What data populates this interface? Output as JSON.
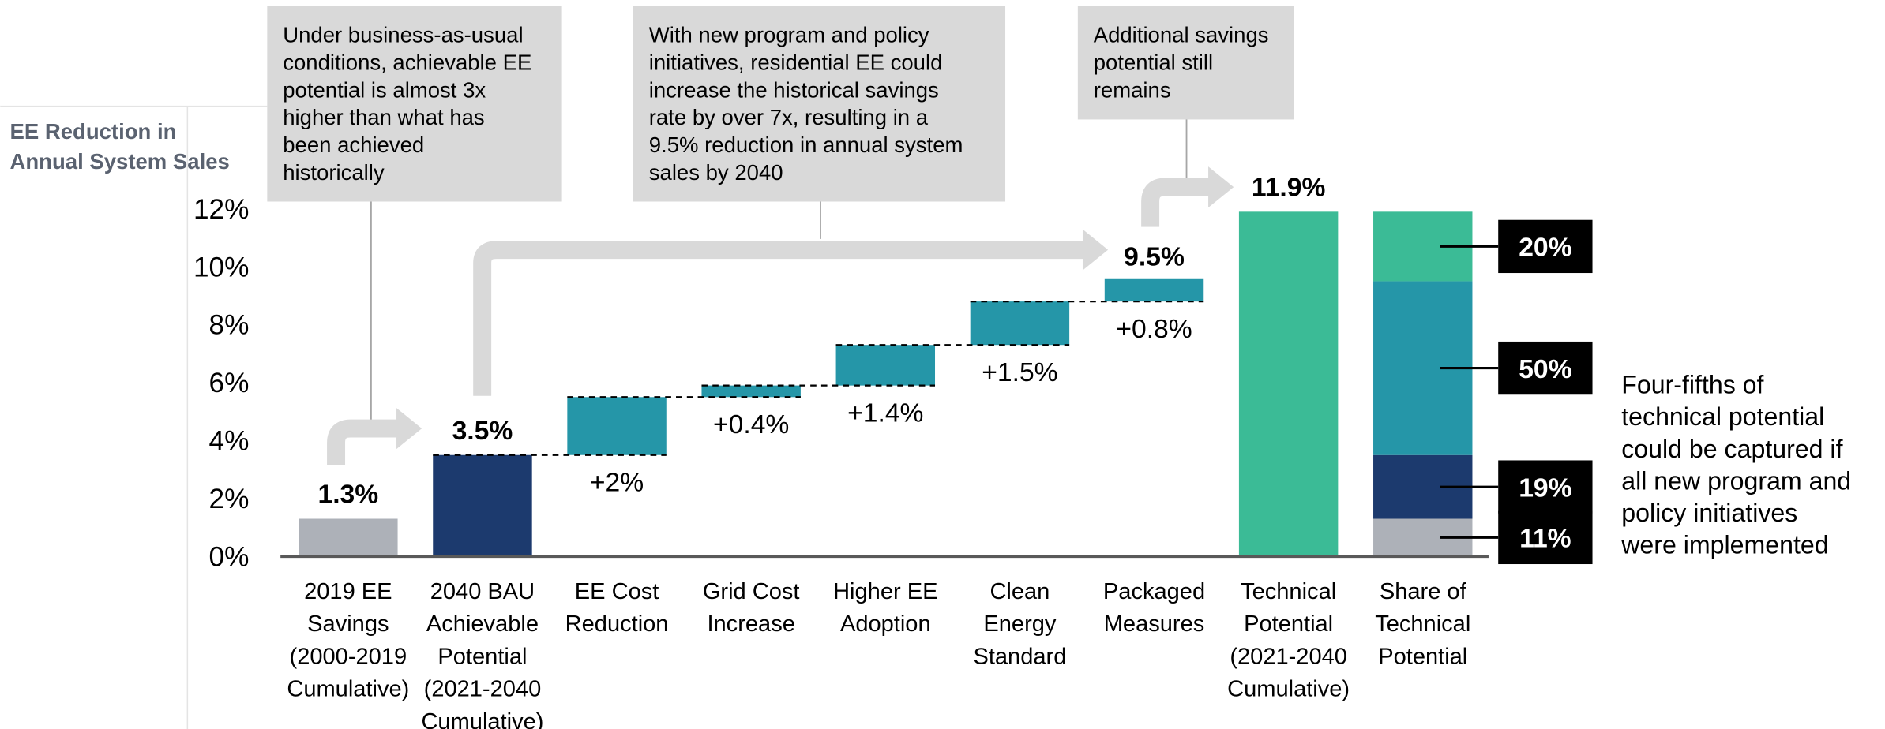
{
  "chart_data": {
    "type": "waterfall",
    "axis_title": [
      "EE Reduction in",
      "Annual System Sales"
    ],
    "categories": [
      [
        "2019 EE",
        "Savings",
        "(2000-2019",
        "Cumulative)"
      ],
      [
        "2040 BAU",
        "Achievable",
        "Potential",
        "(2021-2040",
        "Cumulative)"
      ],
      [
        "EE Cost",
        "Reduction"
      ],
      [
        "Grid Cost",
        "Increase"
      ],
      [
        "Higher EE",
        "Adoption"
      ],
      [
        "Clean",
        "Energy",
        "Standard"
      ],
      [
        "Packaged",
        "Measures"
      ],
      [
        "Technical",
        "Potential",
        "(2021-2040",
        "Cumulative)"
      ],
      [
        "Share of",
        "Technical",
        "Potential"
      ]
    ],
    "values": [
      1.3,
      3.5,
      2,
      0.4,
      1.4,
      1.5,
      0.8,
      11.9,
      null
    ],
    "measure": [
      "absolute",
      "absolute",
      "relative",
      "relative",
      "relative",
      "relative",
      "relative",
      "absolute",
      null
    ],
    "value_labels": [
      "1.3%",
      "3.5%",
      "+2%",
      "+0.4%",
      "+1.4%",
      "+1.5%",
      "+0.8%",
      "11.9%",
      null
    ],
    "colors": [
      "#adb1b8",
      "#1c3a6e",
      "#2596a8",
      "#2596a8",
      "#2596a8",
      "#2596a8",
      "#2596a8",
      "#3bbb96",
      null
    ],
    "total_label": {
      "value": 9.5,
      "label": "9.5%"
    },
    "share": {
      "values": [
        1.3,
        2.2,
        6.0,
        2.4
      ],
      "colors": [
        "#adb1b8",
        "#1c3a6e",
        "#2596a8",
        "#3bbb96"
      ],
      "percents": [
        11,
        19,
        50,
        20
      ],
      "percent_labels": [
        "11%",
        "19%",
        "50%",
        "20%"
      ]
    },
    "ylim": [
      0,
      12
    ],
    "yticks": [
      {
        "value": 0,
        "label": "0%"
      },
      {
        "value": 2,
        "label": "2%"
      },
      {
        "value": 4,
        "label": "4%"
      },
      {
        "value": 6,
        "label": "6%"
      },
      {
        "value": 8,
        "label": "8%"
      },
      {
        "value": 10,
        "label": "10%"
      },
      {
        "value": 12,
        "label": "12%"
      }
    ],
    "annotations": [
      [
        "Under business-as-usual",
        "conditions, achievable EE",
        "potential is almost 3x",
        "higher than what has",
        "been achieved",
        "historically"
      ],
      [
        "With new program and policy",
        "initiatives, residential EE could",
        "increase the historical savings",
        "rate by over 7x, resulting in a",
        "9.5% reduction in annual system",
        "sales by 2040"
      ],
      [
        "Additional savings",
        "potential still",
        "remains"
      ]
    ],
    "note": [
      "Four-fifths of",
      "technical potential",
      "could be captured if",
      "all new program and",
      "policy initiatives",
      "were implemented"
    ]
  }
}
